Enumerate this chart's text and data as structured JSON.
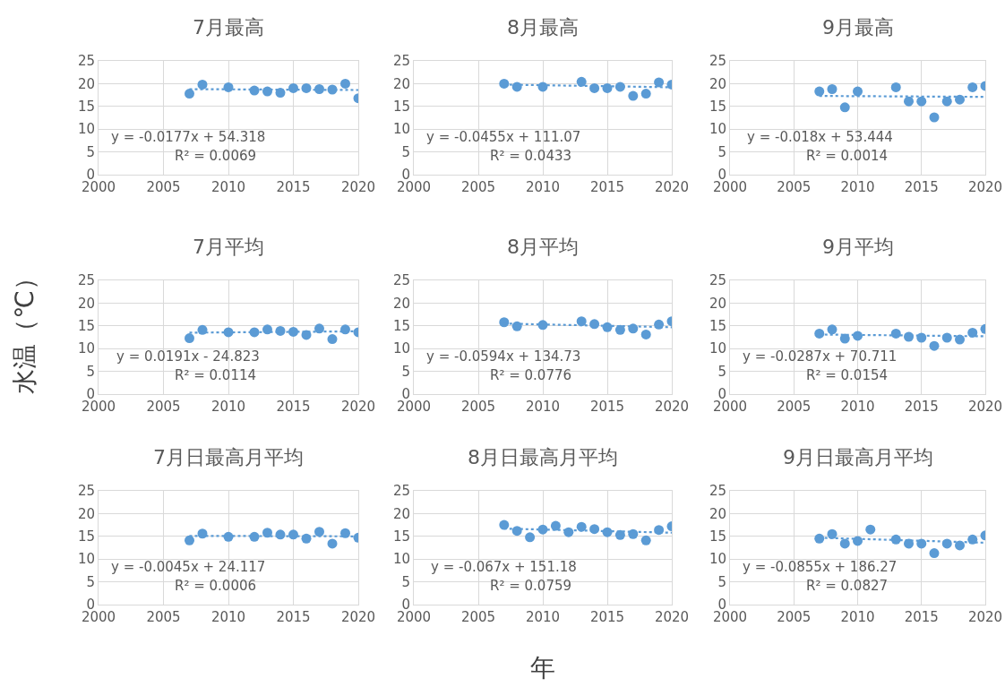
{
  "chart_data": [
    {
      "type": "scatter",
      "title": "7月最高",
      "xlim": [
        2000,
        2020
      ],
      "ylim": [
        0,
        25
      ],
      "xticks": [
        2000,
        2005,
        2010,
        2015,
        2020
      ],
      "yticks": [
        0,
        5,
        10,
        15,
        20,
        25
      ],
      "grid": true,
      "annotations": [
        "y = -0.0177x + 54.318",
        "R² = 0.0069"
      ],
      "series": [
        {
          "marker": "circle",
          "color": "#5b9bd5",
          "x": [
            2007,
            2008,
            2010,
            2012,
            2013,
            2014,
            2015,
            2016,
            2017,
            2018,
            2019,
            2020
          ],
          "values": [
            17.8,
            19.8,
            19.2,
            18.5,
            18.3,
            18.0,
            19.0,
            19.0,
            18.8,
            18.7,
            20.0,
            16.8
          ]
        },
        {
          "type": "line",
          "marker": "none",
          "line_style": "dotted",
          "color": "#5b9bd5",
          "x": [
            2007,
            2020
          ],
          "values": [
            18.8,
            18.6
          ]
        }
      ]
    },
    {
      "type": "scatter",
      "title": "8月最高",
      "xlim": [
        2000,
        2020
      ],
      "ylim": [
        0,
        25
      ],
      "xticks": [
        2000,
        2005,
        2010,
        2015,
        2020
      ],
      "yticks": [
        0,
        5,
        10,
        15,
        20,
        25
      ],
      "grid": true,
      "annotations": [
        "y = -0.0455x + 111.07",
        "R² = 0.0433"
      ],
      "series": [
        {
          "marker": "circle",
          "color": "#5b9bd5",
          "x": [
            2007,
            2008,
            2010,
            2013,
            2014,
            2015,
            2016,
            2017,
            2018,
            2019,
            2020
          ],
          "values": [
            20.0,
            19.3,
            19.3,
            20.4,
            19.0,
            19.0,
            19.3,
            17.3,
            17.8,
            20.3,
            19.8
          ]
        },
        {
          "type": "line",
          "marker": "none",
          "line_style": "dotted",
          "color": "#5b9bd5",
          "x": [
            2007,
            2020
          ],
          "values": [
            19.8,
            19.2
          ]
        }
      ]
    },
    {
      "type": "scatter",
      "title": "9月最高",
      "xlim": [
        2000,
        2020
      ],
      "ylim": [
        0,
        25
      ],
      "xticks": [
        2000,
        2005,
        2010,
        2015,
        2020
      ],
      "yticks": [
        0,
        5,
        10,
        15,
        20,
        25
      ],
      "grid": true,
      "annotations": [
        "y = -0.018x + 53.444",
        "R² = 0.0014"
      ],
      "series": [
        {
          "marker": "circle",
          "color": "#5b9bd5",
          "x": [
            2007,
            2008,
            2009,
            2010,
            2013,
            2014,
            2015,
            2016,
            2017,
            2018,
            2019,
            2020
          ],
          "values": [
            18.3,
            18.8,
            14.8,
            18.3,
            19.2,
            16.1,
            16.1,
            12.6,
            16.1,
            16.5,
            19.2,
            19.5
          ]
        },
        {
          "type": "line",
          "marker": "none",
          "line_style": "dotted",
          "color": "#5b9bd5",
          "x": [
            2007,
            2020
          ],
          "values": [
            17.3,
            17.1
          ]
        }
      ]
    },
    {
      "type": "scatter",
      "title": "7月平均",
      "ylabel": "水温（℃）",
      "xlim": [
        2000,
        2020
      ],
      "ylim": [
        0,
        25
      ],
      "xticks": [
        2000,
        2005,
        2010,
        2015,
        2020
      ],
      "yticks": [
        0,
        5,
        10,
        15,
        20,
        25
      ],
      "grid": true,
      "annotations": [
        "y = 0.0191x - 24.823",
        "R² = 0.0114"
      ],
      "series": [
        {
          "marker": "circle",
          "color": "#5b9bd5",
          "x": [
            2007,
            2008,
            2010,
            2012,
            2013,
            2014,
            2015,
            2016,
            2017,
            2018,
            2019,
            2020
          ],
          "values": [
            12.3,
            14.1,
            13.6,
            13.6,
            14.2,
            13.9,
            13.7,
            13.0,
            14.4,
            12.1,
            14.2,
            13.6
          ]
        },
        {
          "type": "line",
          "marker": "none",
          "line_style": "dotted",
          "color": "#5b9bd5",
          "x": [
            2007,
            2020
          ],
          "values": [
            13.5,
            13.8
          ]
        }
      ]
    },
    {
      "type": "scatter",
      "title": "8月平均",
      "xlim": [
        2000,
        2020
      ],
      "ylim": [
        0,
        25
      ],
      "xticks": [
        2000,
        2005,
        2010,
        2015,
        2020
      ],
      "yticks": [
        0,
        5,
        10,
        15,
        20,
        25
      ],
      "grid": true,
      "annotations": [
        "y = -0.0594x + 134.73",
        "R² = 0.0776"
      ],
      "series": [
        {
          "marker": "circle",
          "color": "#5b9bd5",
          "x": [
            2007,
            2008,
            2010,
            2013,
            2014,
            2015,
            2016,
            2017,
            2018,
            2019,
            2020
          ],
          "values": [
            15.8,
            14.9,
            15.2,
            16.0,
            15.4,
            14.7,
            14.1,
            14.4,
            13.1,
            15.3,
            16.0
          ]
        },
        {
          "type": "line",
          "marker": "none",
          "line_style": "dotted",
          "color": "#5b9bd5",
          "x": [
            2007,
            2020
          ],
          "values": [
            15.5,
            14.7
          ]
        }
      ]
    },
    {
      "type": "scatter",
      "title": "9月平均",
      "xlim": [
        2000,
        2020
      ],
      "ylim": [
        0,
        25
      ],
      "xticks": [
        2000,
        2005,
        2010,
        2015,
        2020
      ],
      "yticks": [
        0,
        5,
        10,
        15,
        20,
        25
      ],
      "grid": true,
      "annotations": [
        "y = -0.0287x + 70.711",
        "R² = 0.0154"
      ],
      "series": [
        {
          "marker": "circle",
          "color": "#5b9bd5",
          "x": [
            2007,
            2008,
            2009,
            2010,
            2013,
            2014,
            2015,
            2016,
            2017,
            2018,
            2019,
            2020
          ],
          "values": [
            13.3,
            14.2,
            12.2,
            12.8,
            13.3,
            12.6,
            12.4,
            10.6,
            12.4,
            12.0,
            13.5,
            14.3
          ]
        },
        {
          "type": "line",
          "marker": "none",
          "line_style": "dotted",
          "color": "#5b9bd5",
          "x": [
            2007,
            2020
          ],
          "values": [
            13.1,
            12.7
          ]
        }
      ]
    },
    {
      "type": "scatter",
      "title": "7月日最高月平均",
      "xlim": [
        2000,
        2020
      ],
      "ylim": [
        0,
        25
      ],
      "xticks": [
        2000,
        2005,
        2010,
        2015,
        2020
      ],
      "yticks": [
        0,
        5,
        10,
        15,
        20,
        25
      ],
      "grid": true,
      "annotations": [
        "y = -0.0045x + 24.117",
        "R² = 0.0006"
      ],
      "series": [
        {
          "marker": "circle",
          "color": "#5b9bd5",
          "x": [
            2007,
            2008,
            2010,
            2012,
            2013,
            2014,
            2015,
            2016,
            2017,
            2018,
            2019,
            2020
          ],
          "values": [
            14.1,
            15.6,
            14.9,
            14.9,
            15.8,
            15.4,
            15.4,
            14.5,
            16.0,
            13.4,
            15.7,
            14.7
          ]
        },
        {
          "type": "line",
          "marker": "none",
          "line_style": "dotted",
          "color": "#5b9bd5",
          "x": [
            2007,
            2020
          ],
          "values": [
            15.1,
            15.0
          ]
        }
      ]
    },
    {
      "type": "scatter",
      "title": "8月日最高月平均",
      "xlabel": "年",
      "xlim": [
        2000,
        2020
      ],
      "ylim": [
        0,
        25
      ],
      "xticks": [
        2000,
        2005,
        2010,
        2015,
        2020
      ],
      "yticks": [
        0,
        5,
        10,
        15,
        20,
        25
      ],
      "grid": true,
      "annotations": [
        "y = -0.067x + 151.18",
        "R² = 0.0759"
      ],
      "series": [
        {
          "marker": "circle",
          "color": "#5b9bd5",
          "x": [
            2007,
            2008,
            2009,
            2010,
            2011,
            2012,
            2013,
            2014,
            2015,
            2016,
            2017,
            2018,
            2019,
            2020
          ],
          "values": [
            17.5,
            16.2,
            14.8,
            16.5,
            17.3,
            15.9,
            17.1,
            16.6,
            15.9,
            15.3,
            15.5,
            14.1,
            16.4,
            17.2
          ]
        },
        {
          "type": "line",
          "marker": "none",
          "line_style": "dotted",
          "color": "#5b9bd5",
          "x": [
            2007,
            2020
          ],
          "values": [
            16.7,
            15.8
          ]
        }
      ]
    },
    {
      "type": "scatter",
      "title": "9月日最高月平均",
      "xlim": [
        2000,
        2020
      ],
      "ylim": [
        0,
        25
      ],
      "xticks": [
        2000,
        2005,
        2010,
        2015,
        2020
      ],
      "yticks": [
        0,
        5,
        10,
        15,
        20,
        25
      ],
      "grid": true,
      "annotations": [
        "y = -0.0855x + 186.27",
        "R² = 0.0827"
      ],
      "series": [
        {
          "marker": "circle",
          "color": "#5b9bd5",
          "x": [
            2007,
            2008,
            2009,
            2010,
            2011,
            2013,
            2014,
            2015,
            2016,
            2017,
            2018,
            2019,
            2020
          ],
          "values": [
            14.5,
            15.5,
            13.4,
            14.0,
            16.5,
            14.3,
            13.4,
            13.4,
            11.3,
            13.4,
            13.0,
            14.3,
            15.2
          ]
        },
        {
          "type": "line",
          "marker": "none",
          "line_style": "dotted",
          "color": "#5b9bd5",
          "x": [
            2007,
            2020
          ],
          "values": [
            14.7,
            13.6
          ]
        }
      ]
    }
  ]
}
